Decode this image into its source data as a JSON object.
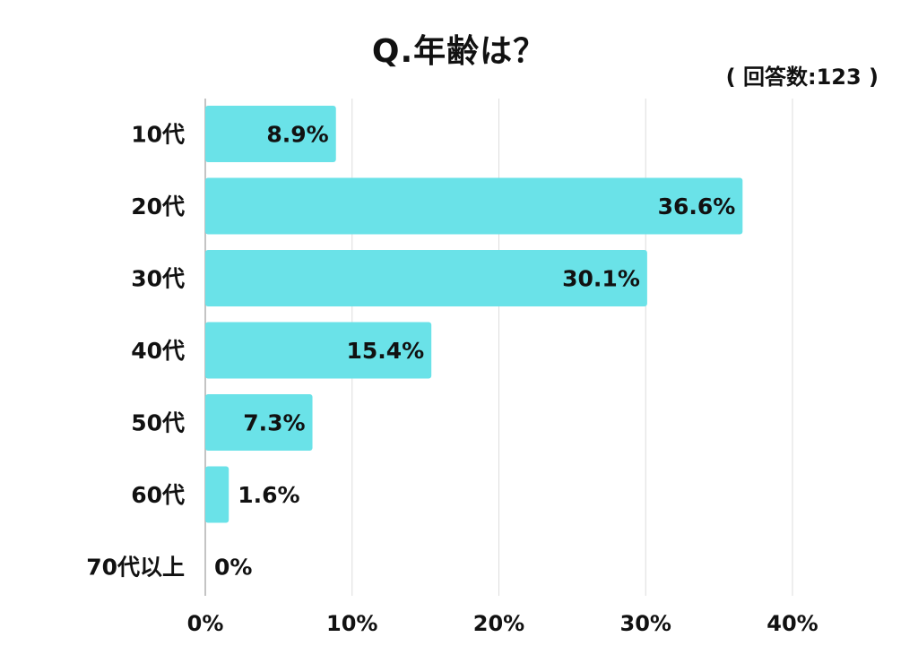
{
  "title": "Q.年齢は？",
  "sample_note": "( 回答数:123 )",
  "chart_data": {
    "type": "bar",
    "orientation": "horizontal",
    "categories": [
      "10代",
      "20代",
      "30代",
      "40代",
      "50代",
      "60代",
      "70代以上"
    ],
    "values": [
      8.9,
      36.6,
      30.1,
      15.4,
      7.3,
      1.6,
      0
    ],
    "value_labels": [
      "8.9%",
      "36.6%",
      "30.1%",
      "15.4%",
      "7.3%",
      "1.6%",
      "0%"
    ],
    "xlim": [
      0,
      40
    ],
    "x_ticks": [
      0,
      10,
      20,
      30,
      40
    ],
    "x_tick_labels": [
      "0%",
      "10%",
      "20%",
      "30%",
      "40%"
    ],
    "grid": true,
    "bar_color": "#6ae2e8",
    "grid_color": "#dddddd",
    "axis_color": "#b0b0b0"
  }
}
